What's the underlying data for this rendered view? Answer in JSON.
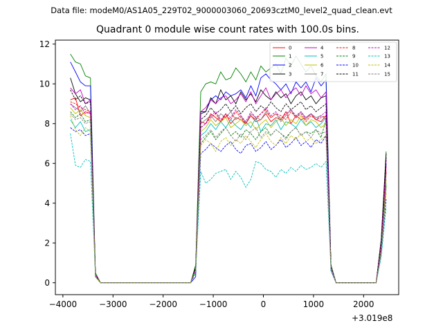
{
  "figure": {
    "suptitle": "Data file: modeM0/AS1A05_229T02_9000003060_20693cztM0_level2_quad_clean.evt",
    "title": "Quadrant 0 module wise count rates with 100.0s bins.",
    "offset_label": "+3.019e8"
  },
  "chart_data": {
    "type": "line",
    "title": "Quadrant 0 module wise count rates with 100.0s bins.",
    "xlabel": "",
    "ylabel": "",
    "xlim": [
      -4150,
      2700
    ],
    "ylim": [
      -0.6,
      12.2
    ],
    "x_offset": 301900000,
    "xticks": [
      -4000,
      -3000,
      -2000,
      -1000,
      0,
      1000,
      2000
    ],
    "xtick_labels": [
      "−4000",
      "−3000",
      "−2000",
      "−1000",
      "0",
      "1000",
      "2000"
    ],
    "yticks": [
      0,
      2,
      4,
      6,
      8,
      10,
      12
    ],
    "ytick_labels": [
      "0",
      "2",
      "4",
      "6",
      "8",
      "10",
      "12"
    ],
    "grid": false,
    "legend": {
      "placement": "top-right",
      "ncol": 4
    },
    "x": [
      -3850,
      -3750,
      -3650,
      -3550,
      -3450,
      -3350,
      -3250,
      -3150,
      -3050,
      -2950,
      -2850,
      -2750,
      -2650,
      -2550,
      -2450,
      -2350,
      -2250,
      -2150,
      -2050,
      -1950,
      -1850,
      -1750,
      -1650,
      -1550,
      -1450,
      -1350,
      -1250,
      -1150,
      -1050,
      -950,
      -850,
      -750,
      -650,
      -550,
      -450,
      -350,
      -250,
      -150,
      -50,
      50,
      150,
      250,
      350,
      450,
      550,
      650,
      750,
      850,
      950,
      1050,
      1150,
      1250,
      1350,
      1450,
      1550,
      1650,
      1750,
      1850,
      1950,
      2050,
      2150,
      2250,
      2350,
      2450
    ],
    "active_ranges": [
      [
        0,
        5
      ],
      [
        25,
        52
      ],
      [
        61,
        63
      ]
    ],
    "series": [
      {
        "name": "0",
        "color": "#ff0000",
        "dash": "solid",
        "values": [
          9.2,
          9.3,
          8.4,
          8.6,
          8.5,
          0.4,
          0,
          0,
          0,
          0,
          0,
          0,
          0,
          0,
          0,
          0,
          0,
          0,
          0,
          0,
          0,
          0,
          0,
          0,
          0,
          0.7,
          8.1,
          8.0,
          8.5,
          8.3,
          8.1,
          8.5,
          8.0,
          8.3,
          8.2,
          8.0,
          8.4,
          8.1,
          8.2,
          8.5,
          8.1,
          8.3,
          8.2,
          8.6,
          8.0,
          8.4,
          8.2,
          8.3,
          8.5,
          8.2,
          8.1,
          8.4,
          0.8,
          0,
          0,
          0,
          0,
          0,
          0,
          0,
          0,
          0,
          1.8,
          5.6
        ]
      },
      {
        "name": "1",
        "color": "#008000",
        "dash": "solid",
        "values": [
          11.5,
          11.1,
          11.0,
          10.4,
          10.3,
          0.5,
          0,
          0,
          0,
          0,
          0,
          0,
          0,
          0,
          0,
          0,
          0,
          0,
          0,
          0,
          0,
          0,
          0,
          0,
          0,
          0.9,
          9.6,
          10.0,
          10.1,
          10.0,
          10.6,
          10.2,
          10.3,
          10.8,
          10.5,
          10.1,
          10.6,
          10.2,
          10.9,
          10.6,
          10.8,
          11.0,
          10.5,
          11.3,
          10.9,
          11.4,
          11.0,
          10.6,
          10.9,
          10.4,
          10.1,
          10.5,
          0.9,
          0,
          0,
          0,
          0,
          0,
          0,
          0,
          0,
          0,
          2.2,
          6.6
        ]
      },
      {
        "name": "2",
        "color": "#0000ff",
        "dash": "solid",
        "values": [
          11.1,
          10.6,
          10.1,
          9.9,
          9.9,
          0.4,
          0,
          0,
          0,
          0,
          0,
          0,
          0,
          0,
          0,
          0,
          0,
          0,
          0,
          0,
          0,
          0,
          0,
          0,
          0,
          0.3,
          8.6,
          8.6,
          9.2,
          9.4,
          9.2,
          9.6,
          9.4,
          9.5,
          9.7,
          9.3,
          9.9,
          9.4,
          10.3,
          10.5,
          10.2,
          10.0,
          9.7,
          10.0,
          9.5,
          10.1,
          9.8,
          10.1,
          9.6,
          10.3,
          9.9,
          10.2,
          0.8,
          0,
          0,
          0,
          0,
          0,
          0,
          0,
          0,
          0,
          2.0,
          6.0
        ]
      },
      {
        "name": "3",
        "color": "#000000",
        "dash": "solid",
        "values": [
          10.3,
          9.5,
          9.1,
          9.3,
          9.2,
          0.4,
          0,
          0,
          0,
          0,
          0,
          0,
          0,
          0,
          0,
          0,
          0,
          0,
          0,
          0,
          0,
          0,
          0,
          0,
          0,
          0.8,
          8.5,
          8.6,
          9.3,
          9.0,
          9.7,
          9.2,
          9.4,
          9.0,
          9.6,
          9.2,
          9.5,
          9.1,
          9.7,
          9.4,
          9.2,
          9.6,
          9.3,
          9.5,
          9.0,
          9.4,
          9.6,
          9.2,
          9.4,
          9.0,
          9.3,
          9.4,
          0.8,
          0,
          0,
          0,
          0,
          0,
          0,
          0,
          0,
          0,
          2.1,
          6.5
        ]
      },
      {
        "name": "4",
        "color": "#bf00bf",
        "dash": "solid",
        "values": [
          9.8,
          9.5,
          9.7,
          9.0,
          9.2,
          0.4,
          0,
          0,
          0,
          0,
          0,
          0,
          0,
          0,
          0,
          0,
          0,
          0,
          0,
          0,
          0,
          0,
          0,
          0,
          0,
          0.7,
          8.6,
          8.8,
          9.2,
          9.0,
          9.3,
          9.4,
          9.0,
          9.2,
          9.5,
          9.1,
          9.6,
          9.0,
          9.4,
          9.8,
          9.2,
          9.5,
          9.7,
          9.3,
          9.6,
          9.8,
          9.4,
          9.9,
          9.5,
          9.7,
          9.3,
          9.6,
          0.8,
          0,
          0,
          0,
          0,
          0,
          0,
          0,
          0,
          0,
          2.0,
          6.2
        ]
      },
      {
        "name": "5",
        "color": "#00bfbf",
        "dash": "solid",
        "values": [
          8.2,
          7.8,
          8.1,
          7.6,
          7.7,
          0.3,
          0,
          0,
          0,
          0,
          0,
          0,
          0,
          0,
          0,
          0,
          0,
          0,
          0,
          0,
          0,
          0,
          0,
          0,
          0,
          0.6,
          7.4,
          7.6,
          8.0,
          7.7,
          8.1,
          7.8,
          8.2,
          7.9,
          7.7,
          8.1,
          7.8,
          8.3,
          7.6,
          8.0,
          7.9,
          8.2,
          7.7,
          8.1,
          8.0,
          7.8,
          8.2,
          7.9,
          8.1,
          7.8,
          8.0,
          8.3,
          0.7,
          0,
          0,
          0,
          0,
          0,
          0,
          0,
          0,
          0,
          1.6,
          5.0
        ]
      },
      {
        "name": "6",
        "color": "#bfbf00",
        "dash": "solid",
        "values": [
          8.8,
          8.5,
          8.7,
          8.4,
          8.3,
          0.3,
          0,
          0,
          0,
          0,
          0,
          0,
          0,
          0,
          0,
          0,
          0,
          0,
          0,
          0,
          0,
          0,
          0,
          0,
          0,
          0.6,
          7.6,
          7.8,
          8.2,
          7.9,
          8.1,
          8.3,
          7.8,
          8.0,
          8.2,
          7.9,
          8.1,
          7.7,
          8.0,
          8.2,
          7.8,
          8.1,
          8.3,
          7.9,
          8.2,
          8.0,
          8.4,
          7.9,
          8.2,
          8.1,
          7.8,
          8.0,
          0.7,
          0,
          0,
          0,
          0,
          0,
          0,
          0,
          0,
          0,
          1.7,
          5.2
        ]
      },
      {
        "name": "7",
        "color": "#808080",
        "dash": "solid",
        "values": [
          9.0,
          8.8,
          8.6,
          8.9,
          8.5,
          0.4,
          0,
          0,
          0,
          0,
          0,
          0,
          0,
          0,
          0,
          0,
          0,
          0,
          0,
          0,
          0,
          0,
          0,
          0,
          0,
          0.7,
          8.0,
          8.2,
          8.4,
          8.1,
          8.5,
          8.3,
          8.6,
          8.2,
          8.4,
          8.0,
          8.5,
          8.3,
          8.2,
          8.6,
          8.3,
          8.5,
          8.1,
          8.4,
          8.7,
          8.3,
          8.6,
          8.2,
          8.5,
          8.3,
          8.4,
          8.2,
          0.7,
          0,
          0,
          0,
          0,
          0,
          0,
          0,
          0,
          0,
          1.8,
          5.5
        ]
      },
      {
        "name": "8",
        "color": "#ff0000",
        "dash": "dashed",
        "values": [
          9.1,
          9.0,
          8.8,
          8.7,
          8.6,
          0.4,
          0,
          0,
          0,
          0,
          0,
          0,
          0,
          0,
          0,
          0,
          0,
          0,
          0,
          0,
          0,
          0,
          0,
          0,
          0,
          0.7,
          7.8,
          8.0,
          8.3,
          8.5,
          8.1,
          8.4,
          8.2,
          8.6,
          8.3,
          8.0,
          8.4,
          8.2,
          8.5,
          8.7,
          8.3,
          8.5,
          8.4,
          8.2,
          8.6,
          8.3,
          8.5,
          8.1,
          8.4,
          8.2,
          8.3,
          8.4,
          0.8,
          0,
          0,
          0,
          0,
          0,
          0,
          0,
          0,
          0,
          1.9,
          5.8
        ]
      },
      {
        "name": "9",
        "color": "#008000",
        "dash": "dashed",
        "values": [
          8.6,
          8.3,
          8.5,
          8.1,
          8.2,
          0.3,
          0,
          0,
          0,
          0,
          0,
          0,
          0,
          0,
          0,
          0,
          0,
          0,
          0,
          0,
          0,
          0,
          0,
          0,
          0,
          0.6,
          7.0,
          7.3,
          7.6,
          7.2,
          7.5,
          7.8,
          7.4,
          7.6,
          7.3,
          7.7,
          7.5,
          7.2,
          7.6,
          7.8,
          7.4,
          7.7,
          7.5,
          7.3,
          7.6,
          7.8,
          7.4,
          7.6,
          7.5,
          7.7,
          7.3,
          8.2,
          0.7,
          0,
          0,
          0,
          0,
          0,
          0,
          0,
          0,
          0,
          1.6,
          4.9
        ]
      },
      {
        "name": "10",
        "color": "#0000ff",
        "dash": "dashed",
        "values": [
          7.8,
          7.6,
          7.7,
          7.4,
          7.5,
          0.3,
          0,
          0,
          0,
          0,
          0,
          0,
          0,
          0,
          0,
          0,
          0,
          0,
          0,
          0,
          0,
          0,
          0,
          0,
          0,
          0.5,
          6.5,
          6.7,
          7.0,
          6.8,
          6.6,
          6.9,
          7.1,
          6.7,
          6.5,
          6.9,
          7.0,
          6.6,
          6.8,
          7.1,
          6.7,
          6.9,
          7.2,
          6.8,
          7.0,
          7.3,
          6.9,
          7.1,
          6.8,
          7.2,
          7.0,
          7.4,
          0.6,
          0,
          0,
          0,
          0,
          0,
          0,
          0,
          0,
          0,
          1.4,
          4.2
        ]
      },
      {
        "name": "11",
        "color": "#000000",
        "dash": "dashed",
        "values": [
          9.7,
          9.2,
          9.4,
          9.0,
          9.1,
          0.4,
          0,
          0,
          0,
          0,
          0,
          0,
          0,
          0,
          0,
          0,
          0,
          0,
          0,
          0,
          0,
          0,
          0,
          0,
          0,
          0.7,
          8.2,
          8.4,
          8.8,
          8.5,
          8.7,
          9.0,
          8.6,
          8.9,
          8.5,
          8.8,
          9.0,
          8.6,
          8.9,
          8.7,
          9.1,
          8.8,
          8.6,
          9.0,
          8.7,
          8.9,
          9.1,
          8.7,
          8.9,
          8.6,
          8.8,
          9.0,
          0.8,
          0,
          0,
          0,
          0,
          0,
          0,
          0,
          0,
          0,
          2.0,
          6.3
        ]
      },
      {
        "name": "12",
        "color": "#bf00bf",
        "dash": "dashed",
        "values": [
          9.0,
          8.7,
          8.9,
          8.5,
          8.6,
          0.4,
          0,
          0,
          0,
          0,
          0,
          0,
          0,
          0,
          0,
          0,
          0,
          0,
          0,
          0,
          0,
          0,
          0,
          0,
          0,
          0.7,
          7.8,
          8.0,
          8.4,
          8.6,
          8.2,
          8.5,
          8.3,
          8.7,
          8.4,
          8.1,
          8.6,
          8.3,
          8.5,
          8.8,
          8.4,
          8.6,
          8.2,
          8.5,
          8.7,
          8.4,
          8.6,
          8.3,
          8.5,
          8.2,
          8.4,
          8.6,
          0.8,
          0,
          0,
          0,
          0,
          0,
          0,
          0,
          0,
          0,
          1.9,
          5.9
        ]
      },
      {
        "name": "13",
        "color": "#00bfbf",
        "dash": "dashed",
        "values": [
          7.5,
          5.9,
          5.8,
          6.2,
          6.1,
          0.3,
          0,
          0,
          0,
          0,
          0,
          0,
          0,
          0,
          0,
          0,
          0,
          0,
          0,
          0,
          0,
          0,
          0,
          0,
          0,
          0.5,
          5.6,
          5.0,
          5.2,
          5.5,
          5.6,
          5.7,
          5.2,
          5.6,
          5.3,
          4.8,
          5.2,
          6.1,
          6.0,
          5.7,
          5.6,
          5.3,
          5.7,
          5.5,
          5.8,
          5.6,
          5.9,
          5.7,
          5.8,
          6.0,
          5.8,
          6.1,
          0.6,
          0,
          0,
          0,
          0,
          0,
          0,
          0,
          0,
          0,
          1.3,
          3.8
        ]
      },
      {
        "name": "14",
        "color": "#bfbf00",
        "dash": "dashed",
        "values": [
          8.4,
          7.7,
          7.4,
          7.8,
          7.6,
          0.3,
          0,
          0,
          0,
          0,
          0,
          0,
          0,
          0,
          0,
          0,
          0,
          0,
          0,
          0,
          0,
          0,
          0,
          0,
          0,
          0.6,
          6.9,
          7.2,
          7.0,
          6.6,
          7.1,
          7.3,
          6.9,
          7.2,
          7.0,
          7.4,
          7.1,
          6.8,
          7.2,
          7.5,
          7.1,
          6.9,
          7.3,
          7.0,
          7.4,
          7.2,
          7.5,
          7.1,
          7.3,
          7.0,
          7.2,
          7.4,
          0.7,
          0,
          0,
          0,
          0,
          0,
          0,
          0,
          0,
          0,
          1.5,
          4.5
        ]
      },
      {
        "name": "15",
        "color": "#808080",
        "dash": "dashed",
        "values": [
          8.5,
          8.2,
          8.3,
          8.0,
          8.1,
          0.3,
          0,
          0,
          0,
          0,
          0,
          0,
          0,
          0,
          0,
          0,
          0,
          0,
          0,
          0,
          0,
          0,
          0,
          0,
          0,
          0.6,
          7.2,
          7.4,
          7.7,
          7.3,
          7.6,
          7.8,
          7.4,
          7.1,
          7.5,
          7.2,
          7.6,
          7.8,
          7.3,
          7.6,
          7.4,
          7.7,
          7.5,
          7.2,
          7.6,
          7.8,
          7.4,
          7.6,
          7.3,
          7.7,
          7.5,
          7.6,
          0.7,
          0,
          0,
          0,
          0,
          0,
          0,
          0,
          0,
          0,
          1.6,
          4.8
        ]
      }
    ]
  }
}
